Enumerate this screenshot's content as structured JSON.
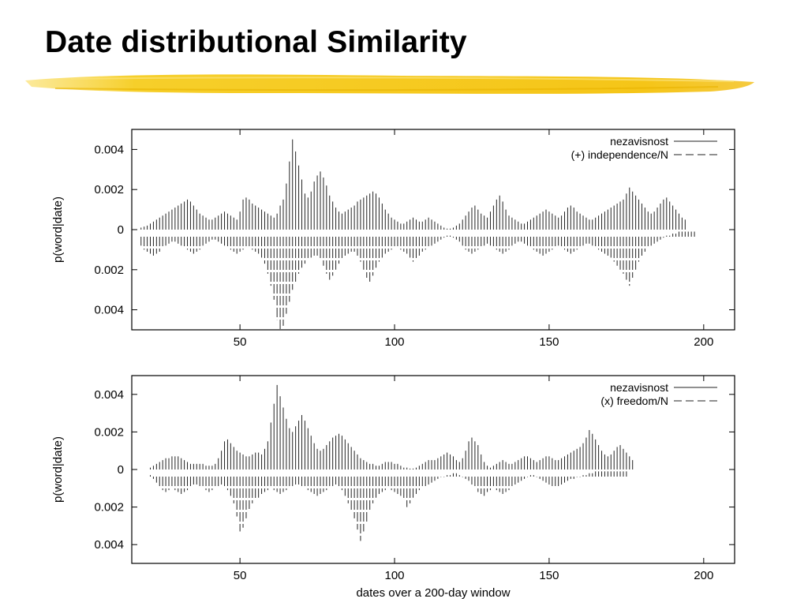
{
  "slide": {
    "title": "Date distributional Similarity"
  },
  "colors": {
    "accent_brush": "#f5c518",
    "plot_line": "#000000"
  },
  "chart_data": [
    {
      "type": "bar",
      "description_free": true,
      "ylabel": "p(word|date)",
      "xlabel": "",
      "xlim": [
        15,
        210
      ],
      "ylim": [
        -0.005,
        0.005
      ],
      "xticks": [
        50,
        100,
        150,
        200
      ],
      "yticks": [
        {
          "value": 0.004,
          "label": "0.004"
        },
        {
          "value": 0.002,
          "label": "0.002"
        },
        {
          "value": 0,
          "label": "0"
        },
        {
          "value": -0.002,
          "label": "0.002"
        },
        {
          "value": -0.004,
          "label": "0.004"
        }
      ],
      "legend_position": "top-right",
      "series": [
        {
          "name": "nezavisnost",
          "line_style": "solid",
          "direction": "up",
          "x_start": 18,
          "values": [
            0.0001,
            0.00015,
            0.0002,
            0.0003,
            0.0004,
            0.0005,
            0.0006,
            0.0007,
            0.0008,
            0.0009,
            0.001,
            0.0011,
            0.0012,
            0.0013,
            0.0014,
            0.0015,
            0.0014,
            0.0012,
            0.001,
            0.0008,
            0.0007,
            0.0006,
            0.0005,
            0.0005,
            0.0006,
            0.0007,
            0.0008,
            0.0009,
            0.0008,
            0.0007,
            0.0006,
            0.0005,
            0.0009,
            0.0015,
            0.0016,
            0.0015,
            0.0013,
            0.0012,
            0.0011,
            0.001,
            0.0009,
            0.0008,
            0.0007,
            0.0006,
            0.0008,
            0.0012,
            0.0015,
            0.0023,
            0.0034,
            0.0045,
            0.0039,
            0.0032,
            0.0025,
            0.0018,
            0.0016,
            0.0019,
            0.0024,
            0.0027,
            0.0029,
            0.0026,
            0.0022,
            0.0017,
            0.0014,
            0.0011,
            0.0009,
            0.0008,
            0.0009,
            0.001,
            0.0011,
            0.0012,
            0.0014,
            0.0015,
            0.0016,
            0.0017,
            0.0018,
            0.0019,
            0.0018,
            0.0016,
            0.0013,
            0.001,
            0.0008,
            0.0006,
            0.0005,
            0.0004,
            0.0003,
            0.0003,
            0.0004,
            0.0005,
            0.0006,
            0.0005,
            0.0004,
            0.0004,
            0.0005,
            0.0006,
            0.0005,
            0.0004,
            0.0003,
            0.0002,
            0.0001,
            5e-05,
            5e-05,
            0.0001,
            0.0002,
            0.0003,
            0.0005,
            0.0007,
            0.0009,
            0.0011,
            0.0012,
            0.001,
            0.0008,
            0.0007,
            0.0006,
            0.0009,
            0.0012,
            0.0015,
            0.0017,
            0.0014,
            0.001,
            0.0007,
            0.0006,
            0.0005,
            0.0004,
            0.0003,
            0.0003,
            0.0004,
            0.0005,
            0.0006,
            0.0007,
            0.0008,
            0.0009,
            0.001,
            0.0009,
            0.0008,
            0.0007,
            0.0006,
            0.0007,
            0.0009,
            0.0011,
            0.0012,
            0.0011,
            0.0009,
            0.0008,
            0.0007,
            0.0006,
            0.0005,
            0.0005,
            0.0006,
            0.0007,
            0.0008,
            0.0009,
            0.001,
            0.0011,
            0.0012,
            0.0013,
            0.0014,
            0.0015,
            0.0018,
            0.0021,
            0.0019,
            0.0017,
            0.0015,
            0.0013,
            0.0011,
            0.0009,
            0.0008,
            0.0009,
            0.0011,
            0.0013,
            0.0015,
            0.0016,
            0.0014,
            0.0012,
            0.001,
            0.0008,
            0.0006,
            0.0005
          ]
        },
        {
          "name": "(+) independence/N",
          "line_style": "dashed",
          "direction": "down",
          "x_start": 18,
          "values": [
            0.0008,
            0.001,
            0.0011,
            0.0012,
            0.0013,
            0.0012,
            0.0011,
            0.0009,
            0.0008,
            0.0007,
            0.0006,
            0.0006,
            0.0007,
            0.0008,
            0.0009,
            0.001,
            0.0011,
            0.0012,
            0.0011,
            0.001,
            0.0008,
            0.0007,
            0.0006,
            0.0005,
            0.0005,
            0.0006,
            0.0007,
            0.0008,
            0.0009,
            0.001,
            0.0011,
            0.0012,
            0.0011,
            0.001,
            0.0009,
            0.0009,
            0.001,
            0.0011,
            0.0012,
            0.0014,
            0.0017,
            0.0022,
            0.0028,
            0.0035,
            0.0045,
            0.005,
            0.0048,
            0.0042,
            0.0036,
            0.003,
            0.0026,
            0.0022,
            0.0019,
            0.0017,
            0.0015,
            0.0014,
            0.0013,
            0.0013,
            0.0015,
            0.0018,
            0.0022,
            0.0025,
            0.0023,
            0.002,
            0.0017,
            0.0015,
            0.0013,
            0.0012,
            0.0011,
            0.0011,
            0.0013,
            0.0016,
            0.002,
            0.0024,
            0.0026,
            0.0023,
            0.0019,
            0.0016,
            0.0014,
            0.0012,
            0.0011,
            0.001,
            0.0009,
            0.0009,
            0.001,
            0.0011,
            0.0012,
            0.0014,
            0.0016,
            0.0015,
            0.0013,
            0.0011,
            0.001,
            0.0009,
            0.0008,
            0.0007,
            0.0006,
            0.0005,
            0.0004,
            0.0003,
            0.0003,
            0.0004,
            0.0005,
            0.0006,
            0.0008,
            0.001,
            0.0011,
            0.0012,
            0.0011,
            0.001,
            0.0009,
            0.0008,
            0.0007,
            0.0008,
            0.0009,
            0.001,
            0.0011,
            0.0012,
            0.0011,
            0.001,
            0.0008,
            0.0007,
            0.0006,
            0.0006,
            0.0007,
            0.0008,
            0.0009,
            0.001,
            0.0011,
            0.0012,
            0.0013,
            0.0012,
            0.0011,
            0.001,
            0.0009,
            0.0008,
            0.0009,
            0.001,
            0.0011,
            0.0012,
            0.0011,
            0.001,
            0.0009,
            0.0008,
            0.0007,
            0.0007,
            0.0008,
            0.0009,
            0.001,
            0.0011,
            0.0012,
            0.0013,
            0.0014,
            0.0016,
            0.0018,
            0.002,
            0.0022,
            0.0025,
            0.0028,
            0.0024,
            0.002,
            0.0016,
            0.0013,
            0.0011,
            0.0009,
            0.0008,
            0.0007,
            0.0006,
            0.0005,
            0.0004,
            0.0003,
            0.0003,
            0.0002,
            0.0002,
            0.0001,
            0.0001,
            0.0001,
            0.0001,
            0.0001,
            0.0001
          ]
        }
      ]
    },
    {
      "type": "bar",
      "ylabel": "p(word|date)",
      "xlabel": "dates over a 200-day window",
      "xlim": [
        15,
        210
      ],
      "ylim": [
        -0.005,
        0.005
      ],
      "xticks": [
        50,
        100,
        150,
        200
      ],
      "yticks": [
        {
          "value": 0.004,
          "label": "0.004"
        },
        {
          "value": 0.002,
          "label": "0.002"
        },
        {
          "value": 0,
          "label": "0"
        },
        {
          "value": -0.002,
          "label": "0.002"
        },
        {
          "value": -0.004,
          "label": "0.004"
        }
      ],
      "legend_position": "top-right",
      "series": [
        {
          "name": "nezavisnost",
          "line_style": "solid",
          "direction": "up",
          "x_start": 21,
          "values": [
            0.0001,
            0.0002,
            0.0003,
            0.0004,
            0.0005,
            0.0006,
            0.0006,
            0.0007,
            0.0007,
            0.0007,
            0.0006,
            0.0005,
            0.0004,
            0.0003,
            0.0003,
            0.0003,
            0.0003,
            0.0003,
            0.0002,
            0.0002,
            0.0002,
            0.0003,
            0.0006,
            0.001,
            0.0015,
            0.0016,
            0.0014,
            0.0012,
            0.001,
            0.0009,
            0.0008,
            0.0007,
            0.0007,
            0.0008,
            0.0009,
            0.0009,
            0.0008,
            0.0011,
            0.0015,
            0.0025,
            0.0035,
            0.0045,
            0.0039,
            0.0033,
            0.0027,
            0.0022,
            0.002,
            0.0023,
            0.0026,
            0.0029,
            0.0026,
            0.0022,
            0.0018,
            0.0014,
            0.0011,
            0.001,
            0.0011,
            0.0013,
            0.0015,
            0.0017,
            0.0018,
            0.0019,
            0.0018,
            0.0016,
            0.0014,
            0.0012,
            0.001,
            0.0008,
            0.0006,
            0.0005,
            0.0004,
            0.0003,
            0.0003,
            0.0002,
            0.0002,
            0.0003,
            0.0004,
            0.0004,
            0.0004,
            0.0003,
            0.0003,
            0.0002,
            0.0001,
            0.0001,
            5e-05,
            5e-05,
            0.0001,
            0.0002,
            0.0003,
            0.0004,
            0.0005,
            0.0005,
            0.0005,
            0.0006,
            0.0007,
            0.0008,
            0.0009,
            0.0008,
            0.0007,
            0.0005,
            0.0004,
            0.0006,
            0.001,
            0.0015,
            0.0017,
            0.0015,
            0.0013,
            0.0008,
            0.0004,
            0.0002,
            0.0001,
            0.0002,
            0.0003,
            0.0004,
            0.0005,
            0.0004,
            0.0003,
            0.0003,
            0.0004,
            0.0005,
            0.0006,
            0.0007,
            0.0007,
            0.0006,
            0.0005,
            0.0004,
            0.0005,
            0.0006,
            0.0007,
            0.0007,
            0.0006,
            0.0005,
            0.0005,
            0.0006,
            0.0007,
            0.0008,
            0.0009,
            0.001,
            0.0011,
            0.0012,
            0.0014,
            0.0017,
            0.0021,
            0.0019,
            0.0016,
            0.0013,
            0.001,
            0.0008,
            0.0007,
            0.0008,
            0.001,
            0.0012,
            0.0013,
            0.0011,
            0.0009,
            0.0007,
            0.0005
          ]
        },
        {
          "name": "(x) freedom/N",
          "line_style": "dashed",
          "direction": "down",
          "x_start": 21,
          "values": [
            0.0003,
            0.0005,
            0.0007,
            0.0009,
            0.0011,
            0.0012,
            0.0011,
            0.001,
            0.0011,
            0.0012,
            0.0013,
            0.0012,
            0.0011,
            0.0009,
            0.0008,
            0.0008,
            0.0009,
            0.001,
            0.0011,
            0.0012,
            0.0011,
            0.001,
            0.0009,
            0.0008,
            0.0009,
            0.0011,
            0.0014,
            0.0018,
            0.0025,
            0.0033,
            0.0031,
            0.0026,
            0.0021,
            0.0018,
            0.0016,
            0.0015,
            0.0013,
            0.0012,
            0.0011,
            0.001,
            0.0011,
            0.0012,
            0.0013,
            0.0012,
            0.0011,
            0.001,
            0.0009,
            0.0008,
            0.0008,
            0.0009,
            0.001,
            0.0011,
            0.0012,
            0.0013,
            0.0014,
            0.0013,
            0.0012,
            0.0011,
            0.001,
            0.0009,
            0.0008,
            0.0009,
            0.0011,
            0.0014,
            0.0018,
            0.0022,
            0.0026,
            0.0032,
            0.0038,
            0.0033,
            0.0028,
            0.0022,
            0.0018,
            0.0015,
            0.0013,
            0.0012,
            0.0011,
            0.001,
            0.0011,
            0.0012,
            0.0013,
            0.0014,
            0.0016,
            0.002,
            0.0018,
            0.0015,
            0.0013,
            0.0011,
            0.001,
            0.0009,
            0.0008,
            0.0007,
            0.0006,
            0.0005,
            0.0004,
            0.0004,
            0.0003,
            0.0003,
            0.0002,
            0.0002,
            0.0003,
            0.0004,
            0.0005,
            0.0006,
            0.0008,
            0.001,
            0.0012,
            0.0013,
            0.0014,
            0.0012,
            0.0011,
            0.001,
            0.0011,
            0.0012,
            0.0013,
            0.0012,
            0.0011,
            0.0009,
            0.0008,
            0.0007,
            0.0006,
            0.0005,
            0.0004,
            0.0003,
            0.0003,
            0.0004,
            0.0005,
            0.0006,
            0.0007,
            0.0008,
            0.0009,
            0.001,
            0.0009,
            0.0008,
            0.0007,
            0.0006,
            0.0005,
            0.0005,
            0.0004,
            0.0004,
            0.0003,
            0.0003,
            0.0002,
            0.0002,
            0.0001,
            0.0001,
            0.0001,
            0.0001,
            0.0001,
            0.0001,
            0.0001,
            0.0001,
            0.0001,
            0.0001,
            0.0001
          ]
        }
      ]
    }
  ]
}
